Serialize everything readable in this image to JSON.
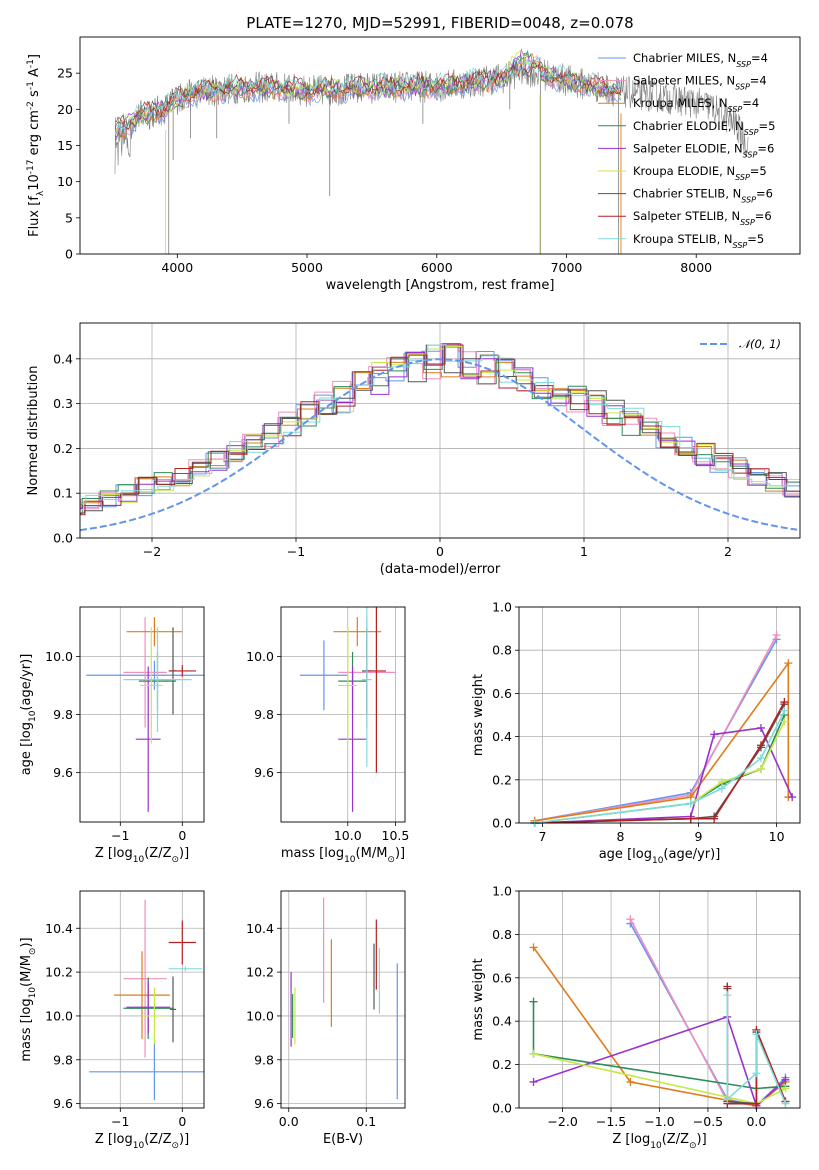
{
  "title": "PLATE=1270, MJD=52991, FIBERID=0048, z=0.078",
  "colors": {
    "Chabrier MILES": "#6495ed",
    "Salpeter MILES": "#f08fbf",
    "Kroupa MILES": "#e07b1a",
    "Chabrier ELODIE": "#2e8b57",
    "Salpeter ELODIE": "#9932cc",
    "Kroupa ELODIE": "#c6e84a",
    "Chabrier STELIB": "#555555",
    "Salpeter STELIB": "#b22222",
    "Kroupa STELIB": "#7fdbdb",
    "data": "#808080",
    "normal": "#6495ed"
  },
  "chart_data": [
    {
      "id": "spectrum",
      "type": "line",
      "xlabel": "wavelength [Angstrom, rest frame]",
      "ylabel": "Flux [f_λ10^{-17} erg cm^{-2} s^{-1} A^{-1}]",
      "xlim": [
        3250,
        8800
      ],
      "ylim": [
        0,
        30
      ],
      "xticks": [
        4000,
        5000,
        6000,
        7000,
        8000
      ],
      "yticks": [
        0,
        5,
        10,
        15,
        20,
        25
      ],
      "legend_position": "upper right",
      "legend": [
        {
          "name": "Chabrier MILES",
          "nssp": "4"
        },
        {
          "name": "Salpeter MILES",
          "nssp": "4"
        },
        {
          "name": "Kroupa MILES",
          "nssp": "4"
        },
        {
          "name": "Chabrier ELODIE",
          "nssp": "5"
        },
        {
          "name": "Salpeter ELODIE",
          "nssp": "6"
        },
        {
          "name": "Kroupa ELODIE",
          "nssp": "5"
        },
        {
          "name": "Chabrier STELIB",
          "nssp": "6"
        },
        {
          "name": "Salpeter STELIB",
          "nssp": "6"
        },
        {
          "name": "Kroupa STELIB",
          "nssp": "5"
        }
      ],
      "data_continuum": [
        [
          3520,
          17
        ],
        [
          3700,
          19
        ],
        [
          3900,
          20
        ],
        [
          4000,
          21.5
        ],
        [
          4200,
          22.5
        ],
        [
          4500,
          23
        ],
        [
          4800,
          23
        ],
        [
          5000,
          22.5
        ],
        [
          5500,
          23
        ],
        [
          6000,
          23.2
        ],
        [
          6300,
          23.8
        ],
        [
          6550,
          24.5
        ],
        [
          6650,
          25.5
        ],
        [
          6800,
          25
        ],
        [
          7000,
          24
        ],
        [
          7400,
          22.5
        ],
        [
          7800,
          21.5
        ],
        [
          8100,
          20.5
        ],
        [
          8300,
          18
        ],
        [
          8400,
          15
        ]
      ],
      "absorption_lines": [
        [
          3934,
          0
        ],
        [
          3968,
          13
        ],
        [
          4102,
          16
        ],
        [
          4304,
          16
        ],
        [
          4861,
          18
        ],
        [
          5175,
          8
        ],
        [
          5893,
          18
        ],
        [
          6563,
          20
        ],
        [
          6800,
          0
        ],
        [
          7400,
          0
        ]
      ]
    },
    {
      "id": "residuals",
      "type": "step-histogram",
      "xlabel": "(data-model)/error",
      "ylabel": "Normed distribution",
      "xlim": [
        -2.5,
        2.5
      ],
      "ylim": [
        0,
        0.48
      ],
      "xticks": [
        -2,
        -1,
        0,
        1,
        2
      ],
      "yticks": [
        0.0,
        0.1,
        0.2,
        0.3,
        0.4
      ],
      "gaussian_label": "𝒩(0, 1)",
      "bin_width": 0.125,
      "mean_values": [
        0.03,
        0.04,
        0.05,
        0.06,
        0.065,
        0.07,
        0.08,
        0.09,
        0.1,
        0.115,
        0.125,
        0.14,
        0.155,
        0.175,
        0.195,
        0.21,
        0.235,
        0.255,
        0.275,
        0.3,
        0.315,
        0.335,
        0.355,
        0.37,
        0.38,
        0.39,
        0.395,
        0.39,
        0.38,
        0.37,
        0.355,
        0.34,
        0.33,
        0.31,
        0.295,
        0.275,
        0.26,
        0.24,
        0.22,
        0.2,
        0.185,
        0.17,
        0.155,
        0.14,
        0.125,
        0.11,
        0.1,
        0.085,
        0.075,
        0.06,
        0.055,
        0.045,
        0.04,
        0.035
      ]
    },
    {
      "id": "age-vs-Z",
      "type": "errorbar",
      "xlabel": "Z [log10(Z/Z⊙)]",
      "ylabel": "age  [log10(age/yr)]",
      "xlim": [
        -1.65,
        0.35
      ],
      "ylim": [
        9.43,
        10.17
      ],
      "xticks": [
        -1,
        0
      ],
      "yticks": [
        9.6,
        9.8,
        10.0
      ],
      "points": [
        {
          "series": "Chabrier MILES",
          "x": -0.45,
          "xerr": 1.1,
          "y": 9.935,
          "yerr": 0.05
        },
        {
          "series": "Salpeter MILES",
          "x": -0.6,
          "xerr": 0.35,
          "y": 9.945,
          "yerr": 0.19
        },
        {
          "series": "Kroupa MILES",
          "x": -0.45,
          "xerr": 0.45,
          "y": 10.085,
          "yerr": 0.05
        },
        {
          "series": "Chabrier ELODIE",
          "x": -0.4,
          "xerr": 0.3,
          "y": 9.915,
          "yerr": 0.1
        },
        {
          "series": "Salpeter ELODIE",
          "x": -0.55,
          "xerr": 0.2,
          "y": 9.715,
          "yerr": 0.25
        },
        {
          "series": "Kroupa ELODIE",
          "x": -0.5,
          "xerr": 0.18,
          "y": 9.9,
          "yerr": 0.2
        },
        {
          "series": "Chabrier STELIB",
          "x": -0.15,
          "xerr": 0.05,
          "y": 9.95,
          "yerr": 0.15
        },
        {
          "series": "Salpeter STELIB",
          "x": 0.0,
          "xerr": 0.22,
          "y": 9.95,
          "yerr": 0.02
        },
        {
          "series": "Kroupa STELIB",
          "x": -0.4,
          "xerr": 0.55,
          "y": 9.92,
          "yerr": 0.18
        }
      ]
    },
    {
      "id": "age-vs-mass",
      "type": "errorbar",
      "xlabel": "mass [log10(M/M⊙)]",
      "ylabel": "",
      "xlim": [
        9.3,
        10.6
      ],
      "ylim": [
        9.43,
        10.17
      ],
      "xticks": [
        10.0,
        10.5
      ],
      "yticks": [
        9.6,
        9.8,
        10.0
      ],
      "points": [
        {
          "series": "Chabrier MILES",
          "x": 9.75,
          "xerr": 0.25,
          "y": 9.935,
          "yerr": 0.12
        },
        {
          "series": "Salpeter MILES",
          "x": 10.2,
          "xerr": 0.3,
          "y": 9.945,
          "yerr": 0.19
        },
        {
          "series": "Kroupa MILES",
          "x": 10.1,
          "xerr": 0.25,
          "y": 10.085,
          "yerr": 0.05
        },
        {
          "series": "Chabrier ELODIE",
          "x": 10.05,
          "xerr": 0.15,
          "y": 9.915,
          "yerr": 0.1
        },
        {
          "series": "Salpeter ELODIE",
          "x": 10.05,
          "xerr": 0.15,
          "y": 9.715,
          "yerr": 0.25
        },
        {
          "series": "Kroupa ELODIE",
          "x": 10.0,
          "xerr": 0.1,
          "y": 9.9,
          "yerr": 0.2
        },
        {
          "series": "Chabrier STELIB",
          "x": 10.2,
          "xerr": 0.05,
          "y": 9.95,
          "yerr": 0.15
        },
        {
          "series": "Salpeter STELIB",
          "x": 10.3,
          "xerr": 0.1,
          "y": 9.95,
          "yerr": 0.35
        },
        {
          "series": "Kroupa STELIB",
          "x": 10.2,
          "xerr": 0.05,
          "y": 9.92,
          "yerr": 0.3
        }
      ]
    },
    {
      "id": "mass-weight-vs-age",
      "type": "line",
      "xlabel": "age  [log10(age/yr)]",
      "ylabel": "mass weight",
      "xlim": [
        6.7,
        10.3
      ],
      "ylim": [
        0,
        1.0
      ],
      "xticks": [
        7,
        8,
        9,
        10
      ],
      "yticks": [
        0.0,
        0.2,
        0.4,
        0.6,
        0.8,
        1.0
      ],
      "series": [
        {
          "name": "Chabrier MILES",
          "points": [
            [
              6.9,
              0.01
            ],
            [
              8.9,
              0.14
            ],
            [
              10.0,
              0.85
            ]
          ]
        },
        {
          "name": "Salpeter MILES",
          "points": [
            [
              6.9,
              0.01
            ],
            [
              8.9,
              0.13
            ],
            [
              10.0,
              0.87
            ]
          ]
        },
        {
          "name": "Kroupa MILES",
          "points": [
            [
              6.9,
              0.01
            ],
            [
              8.9,
              0.12
            ],
            [
              10.15,
              0.74
            ],
            [
              10.15,
              0.12
            ]
          ]
        },
        {
          "name": "Chabrier ELODIE",
          "points": [
            [
              6.9,
              0.0
            ],
            [
              8.9,
              0.09
            ],
            [
              9.3,
              0.18
            ],
            [
              9.8,
              0.25
            ],
            [
              10.1,
              0.5
            ]
          ]
        },
        {
          "name": "Salpeter ELODIE",
          "points": [
            [
              6.9,
              0.0
            ],
            [
              8.9,
              0.03
            ],
            [
              9.2,
              0.41
            ],
            [
              9.8,
              0.44
            ],
            [
              10.2,
              0.12
            ]
          ]
        },
        {
          "name": "Kroupa ELODIE",
          "points": [
            [
              6.9,
              0.0
            ],
            [
              8.9,
              0.09
            ],
            [
              9.3,
              0.19
            ],
            [
              9.8,
              0.25
            ],
            [
              10.1,
              0.47
            ]
          ]
        },
        {
          "name": "Chabrier STELIB",
          "points": [
            [
              6.9,
              0.0
            ],
            [
              8.9,
              0.02
            ],
            [
              9.2,
              0.03
            ],
            [
              9.8,
              0.35
            ],
            [
              10.1,
              0.55
            ]
          ]
        },
        {
          "name": "Salpeter STELIB",
          "points": [
            [
              6.9,
              0.0
            ],
            [
              8.9,
              0.02
            ],
            [
              9.2,
              0.02
            ],
            [
              9.8,
              0.36
            ],
            [
              10.1,
              0.56
            ]
          ]
        },
        {
          "name": "Kroupa STELIB",
          "points": [
            [
              6.9,
              0.0
            ],
            [
              8.9,
              0.09
            ],
            [
              9.3,
              0.16
            ],
            [
              9.8,
              0.3
            ],
            [
              10.1,
              0.52
            ]
          ]
        }
      ]
    },
    {
      "id": "mass-vs-Z",
      "type": "errorbar",
      "xlabel": "Z [log10(Z/Z⊙)]",
      "ylabel": "mass [log10(M/M⊙)]",
      "xlim": [
        -1.65,
        0.35
      ],
      "ylim": [
        9.58,
        10.57
      ],
      "xticks": [
        -1,
        0
      ],
      "yticks": [
        9.6,
        9.8,
        10.0,
        10.2,
        10.4
      ],
      "points": [
        {
          "series": "Chabrier MILES",
          "x": -0.45,
          "xerr": 1.05,
          "y": 9.745,
          "yerr": 0.13
        },
        {
          "series": "Salpeter MILES",
          "x": -0.6,
          "xerr": 0.35,
          "y": 10.17,
          "yerr": 0.36
        },
        {
          "series": "Kroupa MILES",
          "x": -0.65,
          "xerr": 0.45,
          "y": 10.095,
          "yerr": 0.2
        },
        {
          "series": "Chabrier ELODIE",
          "x": -0.55,
          "xerr": 0.4,
          "y": 10.035,
          "yerr": 0.14
        },
        {
          "series": "Salpeter ELODIE",
          "x": -0.55,
          "xerr": 0.35,
          "y": 10.04,
          "yerr": 0.12
        },
        {
          "series": "Kroupa ELODIE",
          "x": -0.45,
          "xerr": 0.2,
          "y": 10.0,
          "yerr": 0.13
        },
        {
          "series": "Chabrier STELIB",
          "x": -0.15,
          "xerr": 0.05,
          "y": 10.03,
          "yerr": 0.15
        },
        {
          "series": "Salpeter STELIB",
          "x": 0.0,
          "xerr": 0.22,
          "y": 10.335,
          "yerr": 0.1
        },
        {
          "series": "Kroupa STELIB",
          "x": 0.05,
          "xerr": 0.27,
          "y": 10.215,
          "yerr": 0.01
        }
      ]
    },
    {
      "id": "mass-vs-EBV",
      "type": "errorbar",
      "xlabel": "E(B-V)",
      "ylabel": "",
      "xlim": [
        -0.01,
        0.15
      ],
      "ylim": [
        9.58,
        10.57
      ],
      "xticks": [
        0.0,
        0.1
      ],
      "yticks": [
        9.6,
        9.8,
        10.0,
        10.2,
        10.4
      ],
      "points": [
        {
          "series": "Chabrier MILES",
          "x": 0.14,
          "y": 9.93,
          "yerr": 0.31
        },
        {
          "series": "Salpeter MILES",
          "x": 0.045,
          "y": 10.3,
          "yerr": 0.24
        },
        {
          "series": "Kroupa MILES",
          "x": 0.055,
          "y": 10.15,
          "yerr": 0.2
        },
        {
          "series": "Chabrier ELODIE",
          "x": 0.005,
          "y": 10.0,
          "yerr": 0.1
        },
        {
          "series": "Salpeter ELODIE",
          "x": 0.003,
          "y": 10.03,
          "yerr": 0.17
        },
        {
          "series": "Kroupa ELODIE",
          "x": 0.008,
          "y": 10.0,
          "yerr": 0.13
        },
        {
          "series": "Chabrier STELIB",
          "x": 0.11,
          "y": 10.18,
          "yerr": 0.15
        },
        {
          "series": "Salpeter STELIB",
          "x": 0.113,
          "y": 10.28,
          "yerr": 0.16
        },
        {
          "series": "Kroupa STELIB",
          "x": 0.117,
          "y": 10.16,
          "yerr": 0.15
        }
      ]
    },
    {
      "id": "mass-weight-vs-Z",
      "type": "line",
      "xlabel": "Z [log10(Z/Z⊙)]",
      "ylabel": "mass weight",
      "xlim": [
        -2.45,
        0.45
      ],
      "ylim": [
        0,
        1.0
      ],
      "xticks": [
        -2.0,
        -1.5,
        -1.0,
        -0.5,
        0.0
      ],
      "yticks": [
        0.0,
        0.2,
        0.4,
        0.6,
        0.8,
        1.0
      ],
      "series": [
        {
          "name": "Chabrier MILES",
          "points": [
            [
              -1.3,
              0.85
            ],
            [
              -0.3,
              0.04
            ],
            [
              0.0,
              0.01
            ],
            [
              0.3,
              0.14
            ]
          ]
        },
        {
          "name": "Salpeter MILES",
          "points": [
            [
              -1.3,
              0.87
            ],
            [
              -0.3,
              0.03
            ],
            [
              0.0,
              0.01
            ],
            [
              0.3,
              0.13
            ]
          ]
        },
        {
          "name": "Kroupa MILES",
          "points": [
            [
              -2.3,
              0.74
            ],
            [
              -1.3,
              0.12
            ],
            [
              0.0,
              0.01
            ],
            [
              0.3,
              0.12
            ]
          ]
        },
        {
          "name": "Chabrier ELODIE",
          "points": [
            [
              -2.3,
              0.49
            ],
            [
              -2.3,
              0.25
            ],
            [
              0.0,
              0.09
            ],
            [
              0.3,
              0.1
            ]
          ]
        },
        {
          "name": "Salpeter ELODIE",
          "points": [
            [
              -2.3,
              0.12
            ],
            [
              -0.3,
              0.42
            ],
            [
              0.0,
              0.01
            ],
            [
              0.3,
              0.13
            ]
          ]
        },
        {
          "name": "Kroupa ELODIE",
          "points": [
            [
              -2.3,
              0.25
            ],
            [
              0.0,
              0.02
            ],
            [
              0.3,
              0.09
            ]
          ]
        },
        {
          "name": "Chabrier STELIB",
          "points": [
            [
              -0.3,
              0.55
            ],
            [
              -0.3,
              0.03
            ],
            [
              0.0,
              0.02
            ],
            [
              0.0,
              0.35
            ],
            [
              0.3,
              0.03
            ]
          ]
        },
        {
          "name": "Salpeter STELIB",
          "points": [
            [
              -0.3,
              0.56
            ],
            [
              -0.3,
              0.02
            ],
            [
              0.0,
              0.02
            ],
            [
              0.0,
              0.36
            ],
            [
              0.3,
              0.03
            ]
          ]
        },
        {
          "name": "Kroupa STELIB",
          "points": [
            [
              -0.3,
              0.52
            ],
            [
              -0.3,
              0.04
            ],
            [
              0.0,
              0.16
            ],
            [
              0.0,
              0.34
            ],
            [
              0.3,
              0.02
            ]
          ]
        }
      ]
    }
  ]
}
